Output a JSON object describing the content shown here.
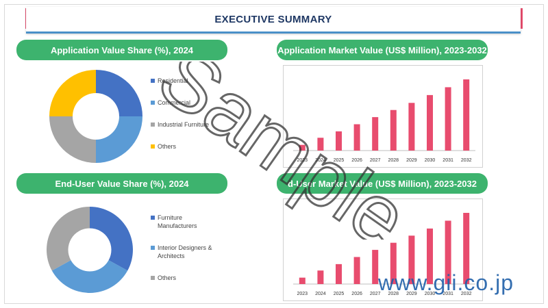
{
  "page": {
    "title": "EXECUTIVE SUMMARY",
    "watermark": "Sample",
    "site": "www.gii.co.jp"
  },
  "panels": {
    "app_share": {
      "title": "Application Value Share (%), 2024"
    },
    "app_market": {
      "title": "Application Market Value (US$ Million), 2023-2032"
    },
    "end_share": {
      "title": "End-User Value Share (%), 2024"
    },
    "end_market": {
      "title": "d-User Market Value (US$ Million), 2023-2032"
    }
  },
  "colors": {
    "blue": "#4472c4",
    "lightblue": "#5b9bd5",
    "gray": "#a5a5a5",
    "yellow": "#ffc000",
    "pink": "#e84c6e",
    "green": "#3db36e"
  },
  "chart_data": [
    {
      "type": "pie",
      "donut": true,
      "categories": [
        "Residential",
        "Commercial",
        "Industrial Furniture",
        "Others"
      ],
      "values": [
        25,
        25,
        25,
        25
      ],
      "colors": [
        "#4472c4",
        "#5b9bd5",
        "#a5a5a5",
        "#ffc000"
      ],
      "title": "Application Value Share (%), 2024",
      "legend": "right"
    },
    {
      "type": "bar",
      "categories": [
        "2023",
        "2024",
        "2025",
        "2026",
        "2027",
        "2028",
        "2029",
        "2030",
        "2031",
        "2032"
      ],
      "values": [
        8,
        18,
        27,
        37,
        47,
        57,
        67,
        78,
        89,
        100
      ],
      "title": "Application Market Value (US$ Million), 2023-2032",
      "ylim": [
        0,
        100
      ],
      "color": "#e84c6e",
      "grid": false
    },
    {
      "type": "pie",
      "donut": true,
      "categories": [
        "Furniture Manufacturers",
        "Interior Designers & Architects",
        "Others"
      ],
      "values": [
        33,
        34,
        33
      ],
      "colors": [
        "#4472c4",
        "#5b9bd5",
        "#a5a5a5"
      ],
      "title": "End-User Value Share (%), 2024",
      "legend": "right"
    },
    {
      "type": "bar",
      "categories": [
        "2023",
        "2024",
        "2025",
        "2026",
        "2027",
        "2028",
        "2029",
        "2030",
        "2031",
        "2032"
      ],
      "values": [
        9,
        19,
        28,
        38,
        48,
        58,
        68,
        78,
        89,
        100
      ],
      "title": "d-User Market Value (US$ Million), 2023-2032",
      "ylim": [
        0,
        100
      ],
      "color": "#e84c6e",
      "grid": false
    }
  ]
}
